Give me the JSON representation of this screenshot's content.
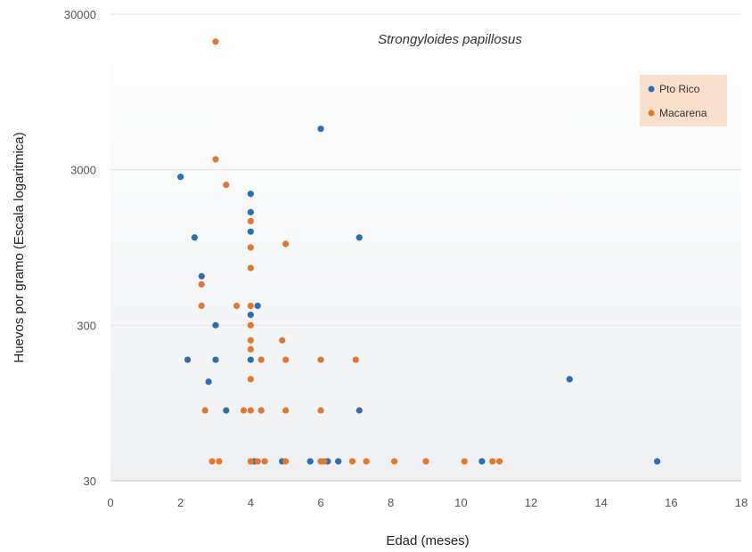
{
  "chart_data": {
    "type": "scatter",
    "title": "Strongyloides papillosus",
    "xlabel": "Edad (meses)",
    "ylabel": "Huevos por gramo (Escala logaritmica)",
    "xlim": [
      0,
      18
    ],
    "ylim": [
      30,
      30000
    ],
    "y_scale": "log",
    "x_ticks": [
      "0",
      "2",
      "4",
      "6",
      "8",
      "10",
      "12",
      "14",
      "16",
      "18"
    ],
    "y_ticks": [
      "30",
      "300",
      "3000",
      "30000"
    ],
    "legend_position": "top-right",
    "series": [
      {
        "name": "Pto Rico",
        "color": "#2e6db4",
        "points": [
          [
            2.0,
            2700
          ],
          [
            2.2,
            180
          ],
          [
            2.4,
            1100
          ],
          [
            2.6,
            620
          ],
          [
            2.8,
            130
          ],
          [
            3.0,
            300
          ],
          [
            3.0,
            180
          ],
          [
            3.3,
            85
          ],
          [
            4.0,
            2100
          ],
          [
            4.0,
            1600
          ],
          [
            4.0,
            1200
          ],
          [
            4.0,
            350
          ],
          [
            4.0,
            180
          ],
          [
            4.2,
            400
          ],
          [
            4.3,
            85
          ],
          [
            6.0,
            5500
          ],
          [
            7.1,
            1100
          ],
          [
            7.1,
            85
          ],
          [
            4.1,
            40
          ],
          [
            4.9,
            40
          ],
          [
            5.7,
            40
          ],
          [
            6.2,
            40
          ],
          [
            6.5,
            40
          ],
          [
            10.6,
            40
          ],
          [
            13.1,
            135
          ],
          [
            15.6,
            40
          ]
        ]
      },
      {
        "name": "Macarena",
        "color": "#e4772e",
        "points": [
          [
            3.0,
            20000
          ],
          [
            3.0,
            3500
          ],
          [
            3.3,
            2400
          ],
          [
            2.6,
            550
          ],
          [
            2.6,
            400
          ],
          [
            2.7,
            85
          ],
          [
            2.9,
            40
          ],
          [
            3.1,
            40
          ],
          [
            3.6,
            400
          ],
          [
            3.8,
            85
          ],
          [
            4.0,
            85
          ],
          [
            4.0,
            1400
          ],
          [
            4.0,
            950
          ],
          [
            4.0,
            700
          ],
          [
            4.0,
            400
          ],
          [
            4.0,
            300
          ],
          [
            4.0,
            240
          ],
          [
            4.0,
            210
          ],
          [
            4.0,
            135
          ],
          [
            4.0,
            40
          ],
          [
            4.2,
            40
          ],
          [
            4.3,
            180
          ],
          [
            4.3,
            85
          ],
          [
            4.4,
            40
          ],
          [
            4.9,
            240
          ],
          [
            5.0,
            1000
          ],
          [
            5.0,
            180
          ],
          [
            5.0,
            85
          ],
          [
            5.0,
            40
          ],
          [
            6.0,
            180
          ],
          [
            6.0,
            85
          ],
          [
            6.0,
            40
          ],
          [
            6.1,
            40
          ],
          [
            7.0,
            180
          ],
          [
            6.9,
            40
          ],
          [
            7.3,
            40
          ],
          [
            8.1,
            40
          ],
          [
            9.0,
            40
          ],
          [
            10.1,
            40
          ],
          [
            10.9,
            40
          ],
          [
            11.1,
            40
          ]
        ]
      }
    ]
  }
}
